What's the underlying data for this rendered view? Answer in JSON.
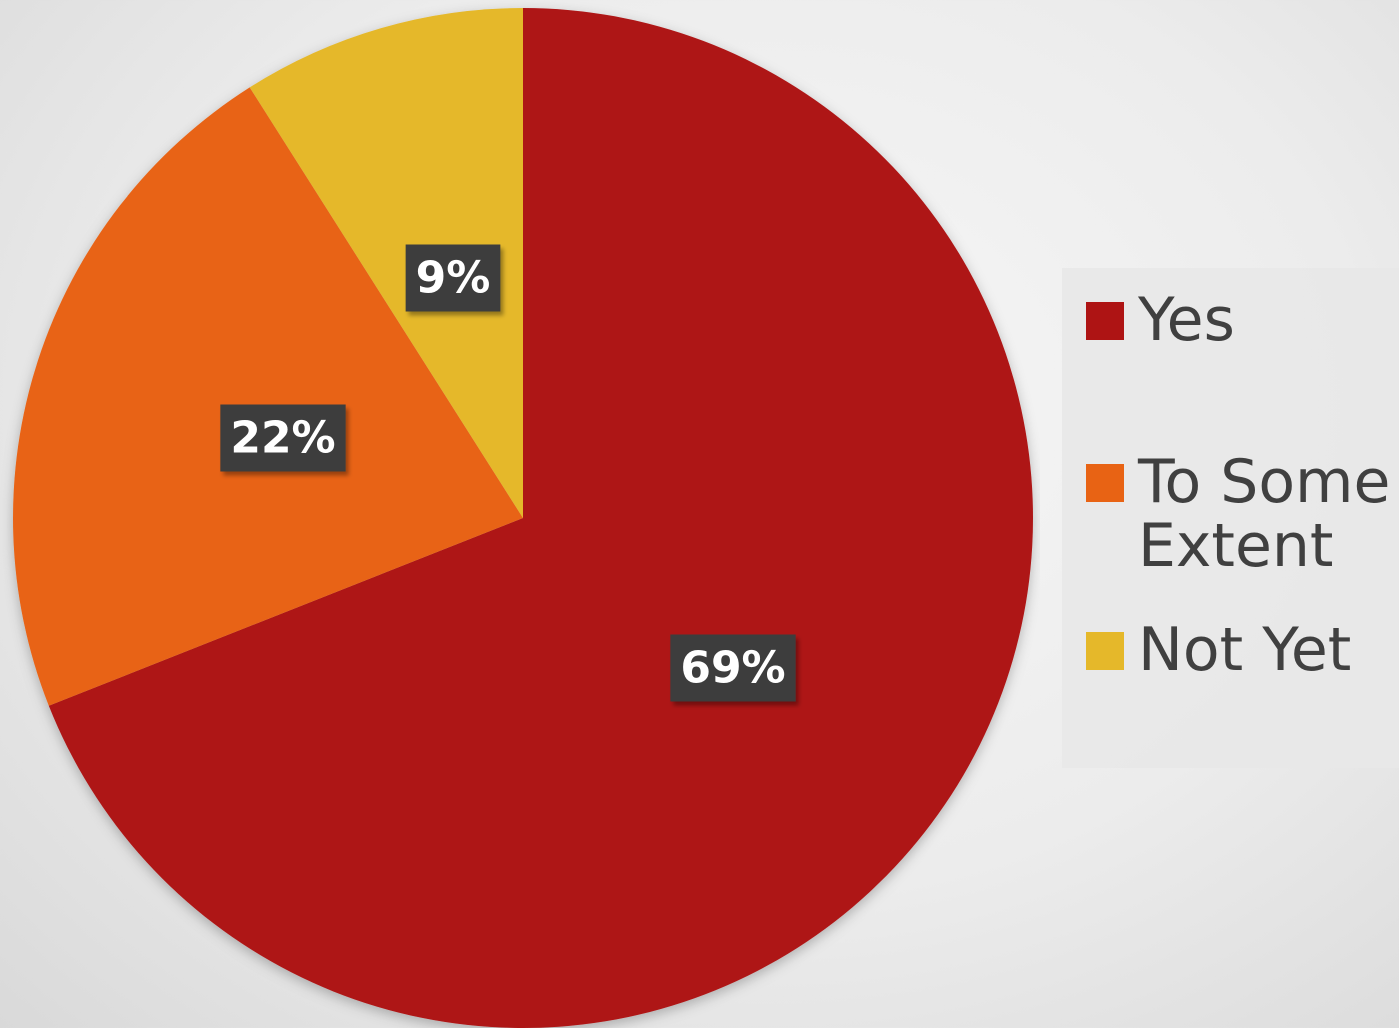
{
  "chart_data": {
    "type": "pie",
    "title": "",
    "categories": [
      "Yes",
      "To Some Extent",
      "Not Yet"
    ],
    "values": [
      69,
      22,
      9
    ],
    "labels": [
      "69%",
      "22%",
      "9%"
    ],
    "colors": [
      "#ae1414",
      "#e86314",
      "#e5b82a"
    ],
    "start_angle_deg": 0,
    "direction": "clockwise",
    "legend_position": "right"
  }
}
